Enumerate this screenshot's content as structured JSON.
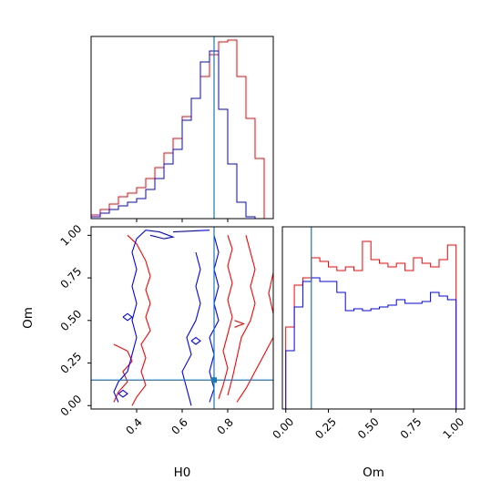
{
  "chart_data": {
    "type": "corner",
    "params": [
      "H0",
      "Om"
    ],
    "truth": {
      "H0": 0.74,
      "Om": 0.15
    },
    "colors": {
      "series_a": "#ff0000",
      "series_b": "#0000ff",
      "truth": "#1f77b4"
    },
    "axes": {
      "H0": {
        "label": "H0",
        "range": [
          0.2,
          1.0
        ],
        "ticks": [
          0.4,
          0.6,
          0.8
        ],
        "tick_labels": [
          "0.4",
          "0.6",
          "0.8"
        ]
      },
      "Om": {
        "label": "Om",
        "range": [
          -0.02,
          1.05
        ],
        "ticks": [
          0.0,
          0.25,
          0.5,
          0.75,
          1.0
        ],
        "tick_labels": [
          "0.00",
          "0.25",
          "0.50",
          "0.75",
          "1.00"
        ]
      }
    },
    "hist_H0": {
      "edges": [
        0.2,
        0.24,
        0.28,
        0.32,
        0.36,
        0.4,
        0.44,
        0.48,
        0.52,
        0.56,
        0.6,
        0.64,
        0.68,
        0.72,
        0.76,
        0.8,
        0.84,
        0.88,
        0.92,
        0.96,
        1.0
      ],
      "series_a": [
        0.02,
        0.05,
        0.08,
        0.12,
        0.14,
        0.17,
        0.22,
        0.28,
        0.36,
        0.44,
        0.56,
        0.66,
        0.78,
        0.9,
        0.97,
        0.98,
        0.78,
        0.55,
        0.33,
        0.0
      ],
      "series_b": [
        0.01,
        0.03,
        0.05,
        0.07,
        0.09,
        0.11,
        0.16,
        0.22,
        0.3,
        0.38,
        0.54,
        0.66,
        0.86,
        0.92,
        0.6,
        0.3,
        0.09,
        0.01,
        0.0,
        0.0
      ]
    },
    "hist_Om": {
      "edges": [
        0.0,
        0.05,
        0.1,
        0.15,
        0.2,
        0.25,
        0.3,
        0.35,
        0.4,
        0.45,
        0.5,
        0.55,
        0.6,
        0.65,
        0.7,
        0.75,
        0.8,
        0.85,
        0.9,
        0.95,
        1.0
      ],
      "series_a": [
        0.45,
        0.68,
        0.72,
        0.83,
        0.81,
        0.78,
        0.76,
        0.78,
        0.76,
        0.92,
        0.82,
        0.8,
        0.78,
        0.8,
        0.76,
        0.83,
        0.8,
        0.78,
        0.82,
        0.9
      ],
      "series_b": [
        0.32,
        0.56,
        0.7,
        0.72,
        0.7,
        0.7,
        0.64,
        0.54,
        0.55,
        0.54,
        0.55,
        0.56,
        0.57,
        0.6,
        0.58,
        0.58,
        0.59,
        0.64,
        0.62,
        0.6
      ]
    },
    "contours_2d": {
      "series_a": [
        [
          [
            0.36,
            1.0
          ],
          [
            0.4,
            0.95
          ],
          [
            0.44,
            0.85
          ],
          [
            0.46,
            0.76
          ],
          [
            0.44,
            0.68
          ],
          [
            0.46,
            0.6
          ],
          [
            0.44,
            0.52
          ],
          [
            0.46,
            0.44
          ],
          [
            0.42,
            0.36
          ],
          [
            0.44,
            0.28
          ],
          [
            0.42,
            0.2
          ],
          [
            0.44,
            0.12
          ],
          [
            0.4,
            0.05
          ],
          [
            0.38,
            0.0
          ]
        ],
        [
          [
            0.3,
            0.36
          ],
          [
            0.36,
            0.32
          ],
          [
            0.38,
            0.26
          ],
          [
            0.34,
            0.2
          ],
          [
            0.36,
            0.14
          ],
          [
            0.32,
            0.08
          ],
          [
            0.3,
            0.02
          ]
        ],
        [
          [
            0.8,
            1.0
          ],
          [
            0.82,
            0.92
          ],
          [
            0.8,
            0.82
          ],
          [
            0.82,
            0.72
          ],
          [
            0.8,
            0.62
          ],
          [
            0.82,
            0.52
          ],
          [
            0.8,
            0.42
          ],
          [
            0.78,
            0.32
          ],
          [
            0.8,
            0.22
          ],
          [
            0.78,
            0.12
          ],
          [
            0.76,
            0.04
          ]
        ],
        [
          [
            0.88,
            1.0
          ],
          [
            0.9,
            0.9
          ],
          [
            0.92,
            0.8
          ],
          [
            0.9,
            0.7
          ],
          [
            0.92,
            0.6
          ],
          [
            0.9,
            0.5
          ],
          [
            0.86,
            0.4
          ],
          [
            0.84,
            0.28
          ],
          [
            0.82,
            0.16
          ],
          [
            0.8,
            0.06
          ]
        ],
        [
          [
            1.0,
            0.78
          ],
          [
            0.98,
            0.66
          ],
          [
            1.0,
            0.54
          ]
        ],
        [
          [
            1.0,
            0.4
          ],
          [
            0.96,
            0.3
          ],
          [
            0.92,
            0.2
          ],
          [
            0.88,
            0.1
          ],
          [
            0.84,
            0.02
          ]
        ],
        [
          [
            0.83,
            0.5
          ],
          [
            0.87,
            0.48
          ],
          [
            0.83,
            0.46
          ]
        ]
      ],
      "series_b": [
        [
          [
            0.46,
            1.0
          ],
          [
            0.52,
            0.98
          ],
          [
            0.56,
            0.99
          ],
          [
            0.5,
            1.02
          ],
          [
            0.44,
            1.03
          ],
          [
            0.4,
            0.98
          ],
          [
            0.38,
            0.9
          ],
          [
            0.4,
            0.8
          ],
          [
            0.38,
            0.7
          ],
          [
            0.4,
            0.6
          ],
          [
            0.38,
            0.5
          ],
          [
            0.4,
            0.4
          ],
          [
            0.38,
            0.3
          ],
          [
            0.36,
            0.2
          ],
          [
            0.32,
            0.14
          ],
          [
            0.3,
            0.08
          ],
          [
            0.32,
            0.02
          ]
        ],
        [
          [
            0.66,
            0.9
          ],
          [
            0.68,
            0.8
          ],
          [
            0.66,
            0.7
          ],
          [
            0.68,
            0.6
          ],
          [
            0.66,
            0.5
          ],
          [
            0.62,
            0.4
          ],
          [
            0.64,
            0.3
          ],
          [
            0.6,
            0.2
          ],
          [
            0.62,
            0.1
          ],
          [
            0.64,
            0.0
          ]
        ],
        [
          [
            0.74,
            1.0
          ],
          [
            0.76,
            0.9
          ],
          [
            0.74,
            0.8
          ],
          [
            0.76,
            0.7
          ],
          [
            0.74,
            0.6
          ],
          [
            0.76,
            0.5
          ],
          [
            0.72,
            0.4
          ],
          [
            0.74,
            0.3
          ],
          [
            0.72,
            0.2
          ],
          [
            0.74,
            0.1
          ],
          [
            0.72,
            0.02
          ]
        ],
        [
          [
            0.72,
            1.03
          ],
          [
            0.56,
            1.02
          ]
        ],
        [
          [
            0.34,
            0.52
          ],
          [
            0.36,
            0.54
          ],
          [
            0.38,
            0.52
          ],
          [
            0.36,
            0.5
          ],
          [
            0.34,
            0.52
          ]
        ],
        [
          [
            0.32,
            0.07
          ],
          [
            0.34,
            0.09
          ],
          [
            0.36,
            0.07
          ],
          [
            0.34,
            0.05
          ],
          [
            0.32,
            0.07
          ]
        ],
        [
          [
            0.64,
            0.38
          ],
          [
            0.66,
            0.4
          ],
          [
            0.68,
            0.38
          ],
          [
            0.66,
            0.36
          ],
          [
            0.64,
            0.38
          ]
        ]
      ]
    }
  }
}
